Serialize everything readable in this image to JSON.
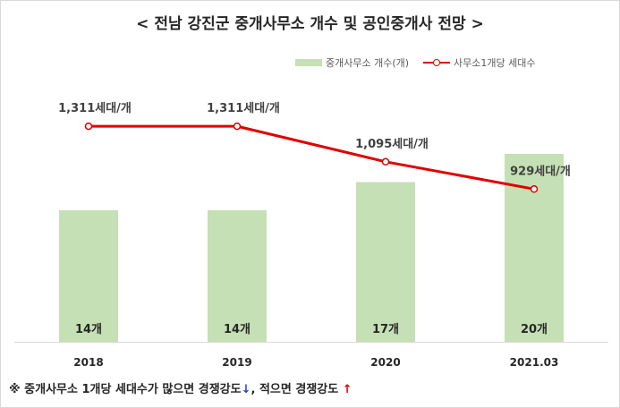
{
  "title": "< 전남 강진군 중개사무소 개수 및 공인중개사 전망 >",
  "chart_data": {
    "type": "bar+line",
    "categories": [
      "2018",
      "2019",
      "2020",
      "2021.03"
    ],
    "series": [
      {
        "name": "중개사무소 개수(개)",
        "kind": "bar",
        "values": [
          14,
          14,
          17,
          20
        ],
        "labels": [
          "14개",
          "14개",
          "17개",
          "20개"
        ],
        "color": "#c5e0b4"
      },
      {
        "name": "사무소1개당 세대수",
        "kind": "line",
        "values": [
          1311,
          1311,
          1095,
          929
        ],
        "labels": [
          "1,311세대/개",
          "1,311세대/개",
          "1,095세대/개",
          "929세대/개"
        ],
        "color": "#e00000"
      }
    ],
    "bar_ylim": [
      0,
      28
    ],
    "line_ylim": [
      0,
      1600
    ],
    "legend_position": "top-right",
    "grid": false
  },
  "footnote": {
    "part1": "※ 중개사무소 1개당 세대수가 많으면 경쟁강도",
    "arrow_down": "↓",
    "part2": ", 적으면 경쟁강도",
    "arrow_up": "↑"
  }
}
